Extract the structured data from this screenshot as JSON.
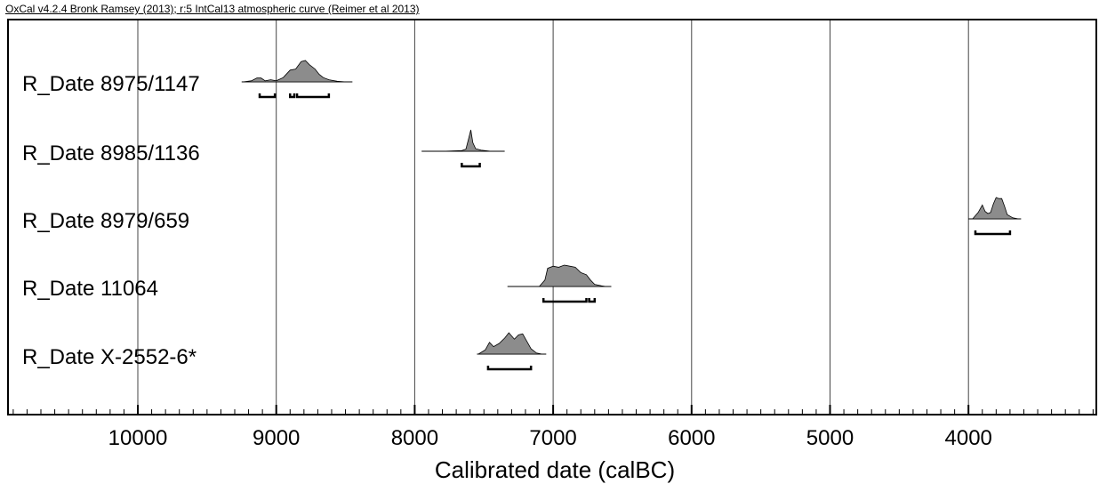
{
  "header": {
    "title": "OxCal v4.2.4 Bronk Ramsey (2013); r:5 IntCal13 atmospheric curve (Reimer et al 2013)"
  },
  "chart_data": {
    "type": "distribution",
    "xlabel": "Calibrated date (calBC)",
    "xlim": [
      10900,
      3100
    ],
    "x_reversed": true,
    "grid": true,
    "ticks": [
      "10000",
      "9000",
      "8000",
      "7000",
      "6000",
      "5000",
      "4000"
    ],
    "tick_values": [
      10000,
      9000,
      8000,
      7000,
      6000,
      5000,
      4000
    ],
    "colors": {
      "distribution_fill": "#8c8c8c",
      "line": "#000000"
    },
    "series": [
      {
        "name": "R_Date 8975/1147",
        "baseline": [
          9250,
          8450
        ],
        "ranges_95": [
          [
            9120,
            9010
          ],
          [
            8900,
            8870
          ],
          [
            8850,
            8620
          ]
        ],
        "profile": [
          [
            9240,
            0
          ],
          [
            9180,
            0.05
          ],
          [
            9140,
            0.18
          ],
          [
            9110,
            0.18
          ],
          [
            9080,
            0.05
          ],
          [
            9040,
            0.1
          ],
          [
            9000,
            0.05
          ],
          [
            8950,
            0.2
          ],
          [
            8900,
            0.55
          ],
          [
            8860,
            0.6
          ],
          [
            8820,
            0.95
          ],
          [
            8790,
            1.0
          ],
          [
            8760,
            0.8
          ],
          [
            8720,
            0.6
          ],
          [
            8690,
            0.35
          ],
          [
            8660,
            0.2
          ],
          [
            8620,
            0.1
          ],
          [
            8560,
            0.03
          ],
          [
            8500,
            0
          ]
        ]
      },
      {
        "name": "R_Date 8985/1136",
        "baseline": [
          7950,
          7350
        ],
        "ranges_95": [
          [
            7660,
            7530
          ]
        ],
        "profile": [
          [
            7800,
            0
          ],
          [
            7660,
            0.03
          ],
          [
            7630,
            0.1
          ],
          [
            7610,
            0.6
          ],
          [
            7595,
            1.0
          ],
          [
            7580,
            0.4
          ],
          [
            7560,
            0.12
          ],
          [
            7520,
            0.05
          ],
          [
            7450,
            0
          ]
        ]
      },
      {
        "name": "R_Date 8979/659",
        "baseline": [
          4000,
          3620
        ],
        "ranges_95": [
          [
            3950,
            3700
          ]
        ],
        "profile": [
          [
            3970,
            0
          ],
          [
            3930,
            0.3
          ],
          [
            3900,
            0.65
          ],
          [
            3880,
            0.35
          ],
          [
            3860,
            0.25
          ],
          [
            3840,
            0.3
          ],
          [
            3820,
            0.7
          ],
          [
            3800,
            1.0
          ],
          [
            3780,
            0.95
          ],
          [
            3760,
            0.95
          ],
          [
            3740,
            0.6
          ],
          [
            3720,
            0.2
          ],
          [
            3680,
            0.05
          ],
          [
            3640,
            0
          ]
        ]
      },
      {
        "name": "R_Date 11064",
        "baseline": [
          7330,
          6580
        ],
        "ranges_95": [
          [
            7070,
            6760
          ],
          [
            6740,
            6700
          ]
        ],
        "profile": [
          [
            7100,
            0
          ],
          [
            7060,
            0.3
          ],
          [
            7040,
            0.85
          ],
          [
            7000,
            0.95
          ],
          [
            6960,
            0.9
          ],
          [
            6920,
            1.0
          ],
          [
            6880,
            0.95
          ],
          [
            6840,
            0.9
          ],
          [
            6800,
            0.65
          ],
          [
            6760,
            0.55
          ],
          [
            6730,
            0.3
          ],
          [
            6700,
            0.1
          ],
          [
            6650,
            0.03
          ],
          [
            6620,
            0
          ]
        ]
      },
      {
        "name": "R_Date X-2552-6*",
        "baseline": [
          7550,
          7050
        ],
        "ranges_95": [
          [
            7470,
            7160
          ]
        ],
        "profile": [
          [
            7540,
            0
          ],
          [
            7490,
            0.2
          ],
          [
            7460,
            0.55
          ],
          [
            7430,
            0.35
          ],
          [
            7390,
            0.5
          ],
          [
            7350,
            0.75
          ],
          [
            7320,
            1.0
          ],
          [
            7280,
            0.7
          ],
          [
            7250,
            0.9
          ],
          [
            7220,
            0.95
          ],
          [
            7190,
            0.6
          ],
          [
            7160,
            0.25
          ],
          [
            7120,
            0.05
          ],
          [
            7080,
            0
          ]
        ]
      }
    ]
  }
}
